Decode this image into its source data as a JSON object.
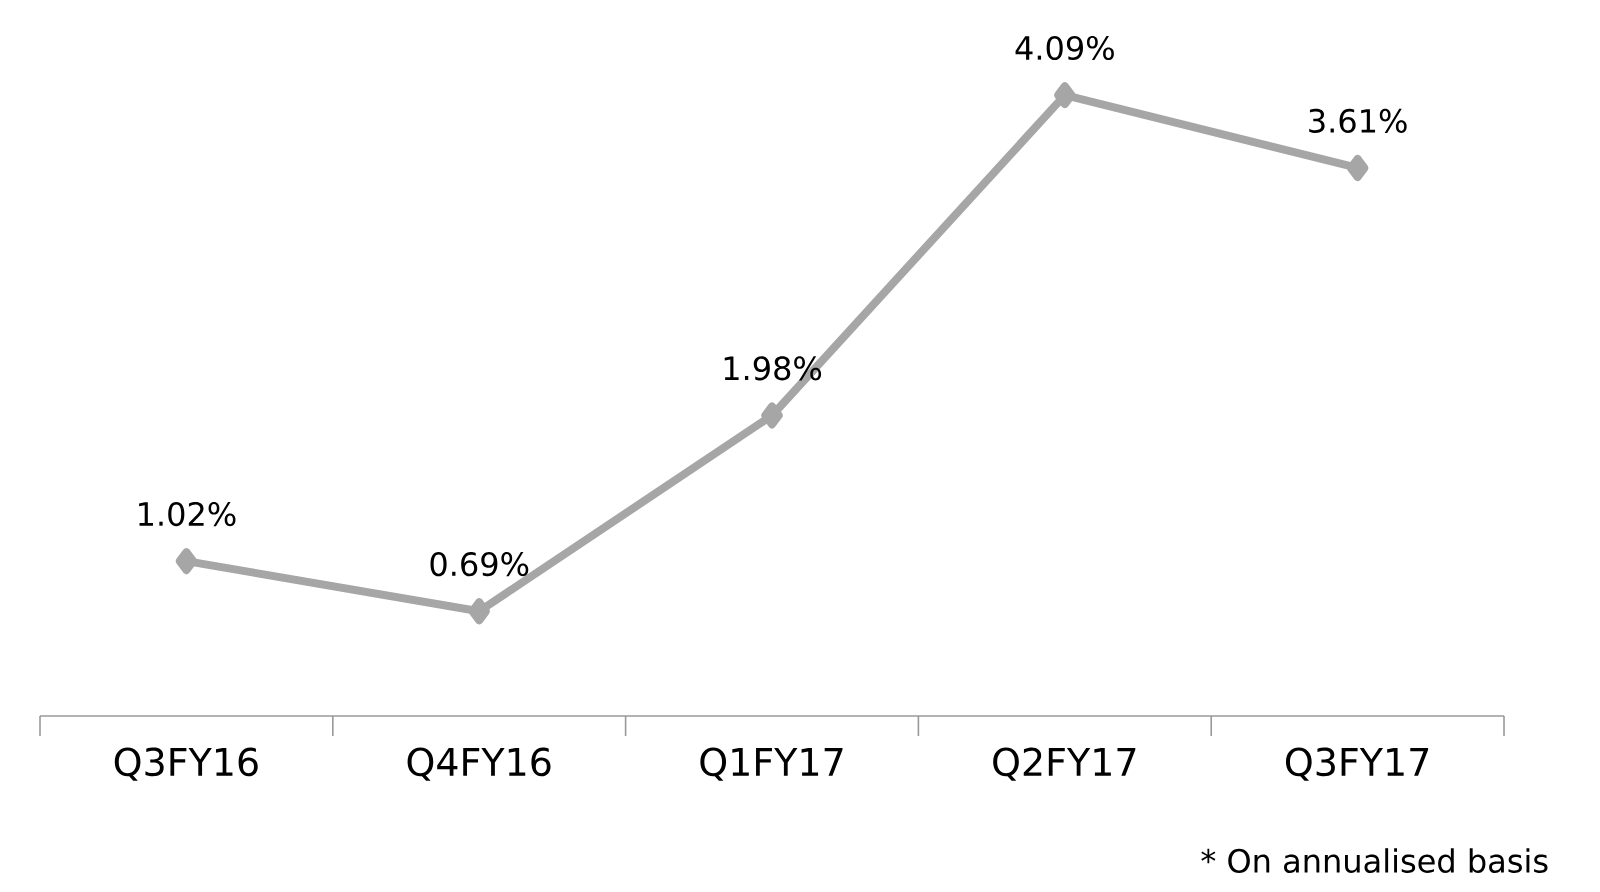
{
  "chart_data": {
    "type": "line",
    "categories": [
      "Q3FY16",
      "Q4FY16",
      "Q1FY17",
      "Q2FY17",
      "Q3FY17"
    ],
    "values": [
      1.02,
      0.69,
      1.98,
      4.09,
      3.61
    ],
    "value_labels": [
      "1.02%",
      "0.69%",
      "1.98%",
      "4.09%",
      "3.61%"
    ],
    "color": "#a6a6a6",
    "marker": "diamond",
    "line_style": "solid",
    "annotations": [
      "* On annualised basis"
    ]
  }
}
